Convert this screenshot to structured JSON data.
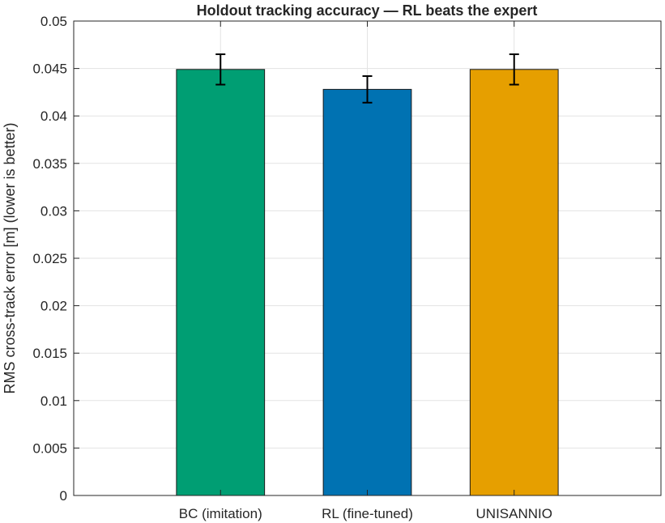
{
  "chart_data": {
    "type": "bar",
    "title": "Holdout tracking accuracy — RL beats the expert",
    "ylabel": "RMS cross-track error [m] (lower is better)",
    "xlabel": "",
    "categories": [
      "BC (imitation)",
      "RL (fine-tuned)",
      "UNISANNIO"
    ],
    "values": [
      0.0449,
      0.0428,
      0.0449
    ],
    "error": [
      0.0016,
      0.0014,
      0.0016
    ],
    "colors": [
      "#009e73",
      "#0072b2",
      "#e69f00"
    ],
    "ylim": [
      0,
      0.05
    ],
    "yticks": [
      0,
      0.005,
      0.01,
      0.015,
      0.02,
      0.025,
      0.03,
      0.035,
      0.04,
      0.045,
      0.05
    ],
    "ytick_labels": [
      "0",
      "0.005",
      "0.01",
      "0.015",
      "0.02",
      "0.025",
      "0.03",
      "0.035",
      "0.04",
      "0.045",
      "0.05"
    ],
    "grid": true,
    "legend": "none"
  }
}
